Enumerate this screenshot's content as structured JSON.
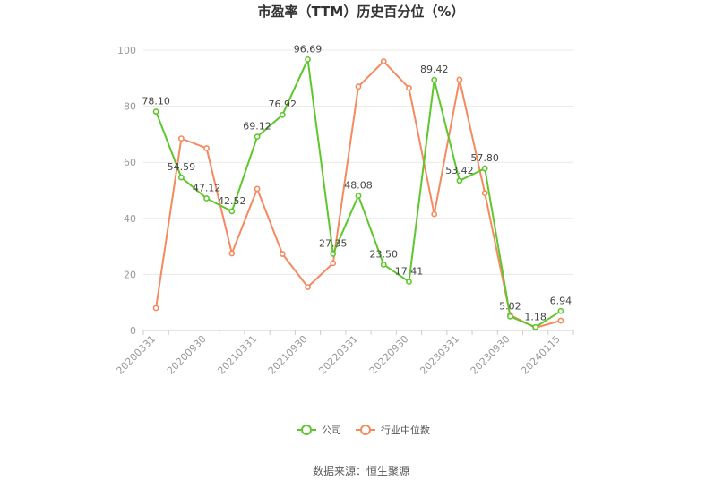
{
  "chart_data": {
    "type": "line",
    "title": "市盈率（TTM）历史百分位（%）",
    "source": "数据来源：恒生聚源",
    "ylim": [
      0,
      100
    ],
    "yticks": [
      0,
      20,
      40,
      60,
      80,
      100
    ],
    "grid": true,
    "legend_position": "bottom",
    "x": [
      "20200331",
      "20200630",
      "20200930",
      "20201231",
      "20210331",
      "20210630",
      "20210930",
      "20211231",
      "20220331",
      "20220630",
      "20220930",
      "20221231",
      "20230331",
      "20230630",
      "20230930",
      "20231231",
      "20240115"
    ],
    "x_tick_labels": [
      "20200331",
      "20200930",
      "20210331",
      "20210930",
      "20220331",
      "20220930",
      "20230331",
      "20230930",
      "20240115"
    ],
    "series": [
      {
        "name": "公司",
        "color": "#5ec72d",
        "show_labels": true,
        "values": [
          78.1,
          54.59,
          47.12,
          42.52,
          69.12,
          76.92,
          96.69,
          27.35,
          48.08,
          23.5,
          17.41,
          89.42,
          53.42,
          57.8,
          5.02,
          1.18,
          6.94
        ],
        "labels": [
          "78.10",
          "54.59",
          "47.12",
          "42.52",
          "69.12",
          "76.92",
          "96.69",
          "27.35",
          "48.08",
          "23.50",
          "17.41",
          "89.42",
          "53.42",
          "57.80",
          "5.02",
          "1.18",
          "6.94"
        ]
      },
      {
        "name": "行业中位数",
        "color": "#f5895f",
        "show_labels": false,
        "values": [
          8,
          68.5,
          65,
          27.5,
          50.5,
          27.3,
          15.5,
          24,
          87,
          96,
          86.5,
          41.5,
          89.5,
          49,
          5.5,
          1,
          3.5
        ]
      }
    ]
  }
}
